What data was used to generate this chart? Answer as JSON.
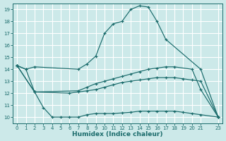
{
  "xlabel": "Humidex (Indice chaleur)",
  "bg_color": "#cce9e9",
  "line_color": "#1a6b6b",
  "grid_color": "#ffffff",
  "xlim": [
    -0.5,
    23.5
  ],
  "ylim": [
    9.5,
    19.5
  ],
  "xticks": [
    0,
    1,
    2,
    3,
    4,
    5,
    6,
    7,
    8,
    9,
    10,
    11,
    12,
    13,
    14,
    15,
    16,
    17,
    18,
    19,
    20,
    21,
    23
  ],
  "yticks": [
    10,
    11,
    12,
    13,
    14,
    15,
    16,
    17,
    18,
    19
  ],
  "series": [
    {
      "x": [
        0,
        1,
        2,
        7,
        8,
        9,
        10,
        11,
        12,
        13,
        14,
        15,
        16,
        17,
        21,
        23
      ],
      "y": [
        14.3,
        14.0,
        14.2,
        14.0,
        14.45,
        15.1,
        17.0,
        17.8,
        18.0,
        19.0,
        19.3,
        19.2,
        18.0,
        16.5,
        14.0,
        10.0
      ]
    },
    {
      "x": [
        0,
        1,
        2,
        7,
        8,
        9,
        10,
        11,
        12,
        13,
        14,
        15,
        16,
        17,
        18,
        20,
        21,
        23
      ],
      "y": [
        14.3,
        14.0,
        12.1,
        12.2,
        12.5,
        12.8,
        13.0,
        13.2,
        13.4,
        13.6,
        13.8,
        14.0,
        14.1,
        14.2,
        14.2,
        14.0,
        12.3,
        10.0
      ]
    },
    {
      "x": [
        0,
        2,
        6,
        7,
        8,
        9,
        10,
        11,
        12,
        13,
        14,
        15,
        16,
        17,
        18,
        19,
        20,
        21,
        23
      ],
      "y": [
        14.3,
        12.1,
        12.0,
        12.1,
        12.2,
        12.3,
        12.5,
        12.7,
        12.9,
        13.0,
        13.1,
        13.2,
        13.3,
        13.3,
        13.3,
        13.2,
        13.1,
        13.0,
        10.0
      ]
    },
    {
      "x": [
        0,
        2,
        3,
        4,
        5,
        6,
        7,
        8,
        9,
        10,
        11,
        12,
        13,
        14,
        15,
        16,
        17,
        18,
        19,
        20,
        21,
        23
      ],
      "y": [
        14.3,
        12.1,
        10.8,
        10.0,
        10.0,
        10.0,
        10.0,
        10.2,
        10.3,
        10.3,
        10.3,
        10.35,
        10.4,
        10.5,
        10.5,
        10.5,
        10.5,
        10.5,
        10.4,
        10.3,
        10.2,
        10.0
      ]
    }
  ]
}
